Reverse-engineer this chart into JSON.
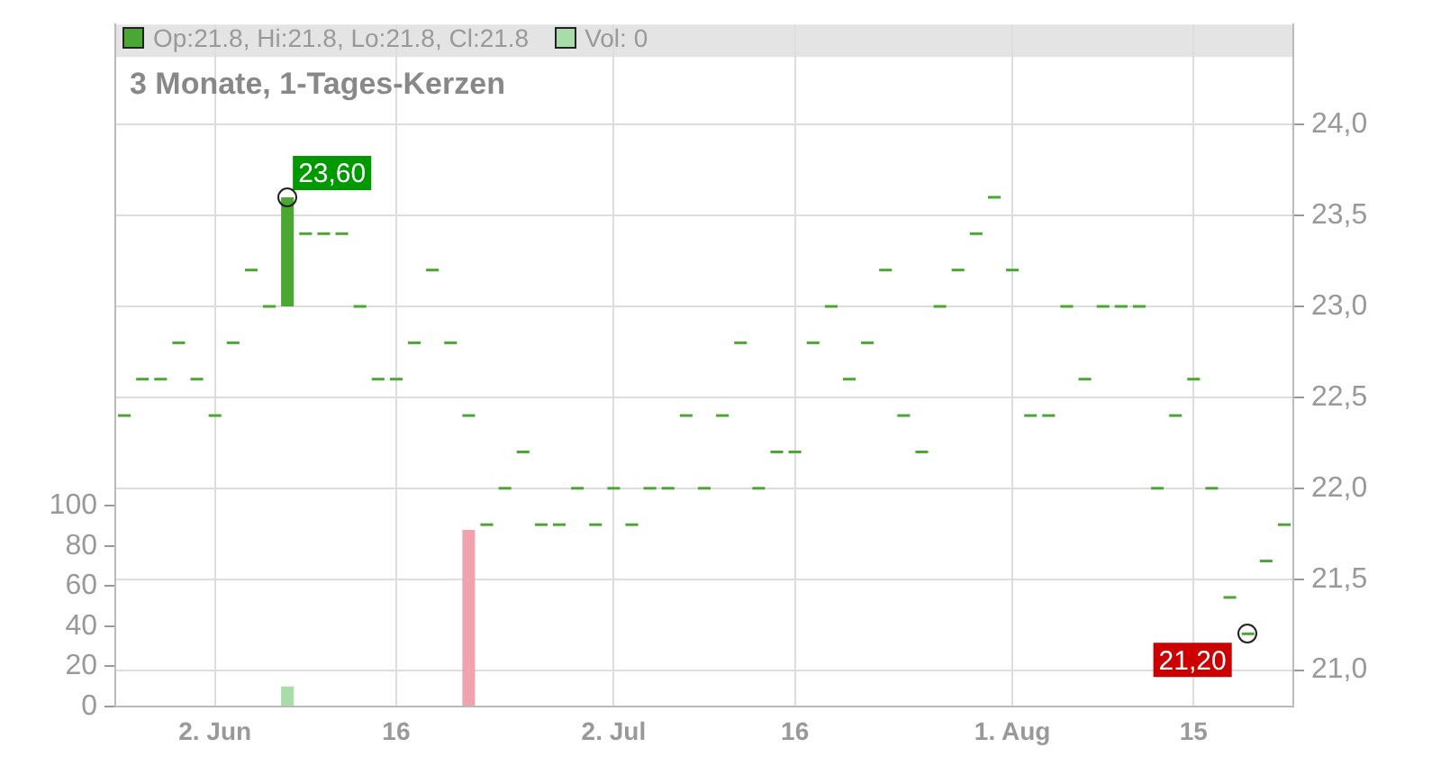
{
  "chart_data": {
    "type": "candlestick",
    "title": "3 Monate, 1-Tages-Kerzen",
    "categories": [
      null,
      null,
      null,
      null,
      null,
      "2. Jun",
      null,
      null,
      null,
      null,
      null,
      null,
      null,
      null,
      null,
      "16",
      null,
      null,
      null,
      null,
      null,
      null,
      null,
      null,
      null,
      null,
      null,
      "2. Jul",
      null,
      null,
      null,
      null,
      null,
      null,
      null,
      null,
      null,
      "16",
      null,
      null,
      null,
      null,
      null,
      null,
      null,
      null,
      null,
      null,
      null,
      "1. Aug",
      null,
      null,
      null,
      null,
      null,
      null,
      null,
      null,
      null,
      "15",
      null,
      null,
      null,
      null,
      null
    ],
    "series": [
      {
        "name": "Op:21.8, Hi:21.8, Lo:21.8, Cl:21.8",
        "color": "#4aa832",
        "ohlc": [
          [
            22.4,
            22.4,
            22.4,
            22.4
          ],
          [
            22.6,
            22.6,
            22.6,
            22.6
          ],
          [
            22.6,
            22.6,
            22.6,
            22.6
          ],
          [
            22.8,
            22.8,
            22.8,
            22.8
          ],
          [
            22.6,
            22.6,
            22.6,
            22.6
          ],
          [
            22.4,
            22.4,
            22.4,
            22.4
          ],
          [
            22.8,
            22.8,
            22.8,
            22.8
          ],
          [
            23.2,
            23.2,
            23.2,
            23.2
          ],
          [
            23.0,
            23.0,
            23.0,
            23.0
          ],
          [
            23.0,
            23.6,
            23.0,
            23.6
          ],
          [
            23.4,
            23.4,
            23.4,
            23.4
          ],
          [
            23.4,
            23.4,
            23.4,
            23.4
          ],
          [
            23.4,
            23.4,
            23.4,
            23.4
          ],
          [
            23.0,
            23.0,
            23.0,
            23.0
          ],
          [
            22.6,
            22.6,
            22.6,
            22.6
          ],
          [
            22.6,
            22.6,
            22.6,
            22.6
          ],
          [
            22.8,
            22.8,
            22.8,
            22.8
          ],
          [
            23.2,
            23.2,
            23.2,
            23.2
          ],
          [
            22.8,
            22.8,
            22.8,
            22.8
          ],
          [
            22.4,
            22.4,
            22.4,
            22.4
          ],
          [
            21.8,
            21.8,
            21.8,
            21.8
          ],
          [
            22.0,
            22.0,
            22.0,
            22.0
          ],
          [
            22.2,
            22.2,
            22.2,
            22.2
          ],
          [
            21.8,
            21.8,
            21.8,
            21.8
          ],
          [
            21.8,
            21.8,
            21.8,
            21.8
          ],
          [
            22.0,
            22.0,
            22.0,
            22.0
          ],
          [
            21.8,
            21.8,
            21.8,
            21.8
          ],
          [
            22.0,
            22.0,
            22.0,
            22.0
          ],
          [
            21.8,
            21.8,
            21.8,
            21.8
          ],
          [
            22.0,
            22.0,
            22.0,
            22.0
          ],
          [
            22.0,
            22.0,
            22.0,
            22.0
          ],
          [
            22.4,
            22.4,
            22.4,
            22.4
          ],
          [
            22.0,
            22.0,
            22.0,
            22.0
          ],
          [
            22.4,
            22.4,
            22.4,
            22.4
          ],
          [
            22.8,
            22.8,
            22.8,
            22.8
          ],
          [
            22.0,
            22.0,
            22.0,
            22.0
          ],
          [
            22.2,
            22.2,
            22.2,
            22.2
          ],
          [
            22.2,
            22.2,
            22.2,
            22.2
          ],
          [
            22.8,
            22.8,
            22.8,
            22.8
          ],
          [
            23.0,
            23.0,
            23.0,
            23.0
          ],
          [
            22.6,
            22.6,
            22.6,
            22.6
          ],
          [
            22.8,
            22.8,
            22.8,
            22.8
          ],
          [
            23.2,
            23.2,
            23.2,
            23.2
          ],
          [
            22.4,
            22.4,
            22.4,
            22.4
          ],
          [
            22.2,
            22.2,
            22.2,
            22.2
          ],
          [
            23.0,
            23.0,
            23.0,
            23.0
          ],
          [
            23.2,
            23.2,
            23.2,
            23.2
          ],
          [
            23.4,
            23.4,
            23.4,
            23.4
          ],
          [
            23.6,
            23.6,
            23.6,
            23.6
          ],
          [
            23.2,
            23.2,
            23.2,
            23.2
          ],
          [
            22.4,
            22.4,
            22.4,
            22.4
          ],
          [
            22.4,
            22.4,
            22.4,
            22.4
          ],
          [
            23.0,
            23.0,
            23.0,
            23.0
          ],
          [
            22.6,
            22.6,
            22.6,
            22.6
          ],
          [
            23.0,
            23.0,
            23.0,
            23.0
          ],
          [
            23.0,
            23.0,
            23.0,
            23.0
          ],
          [
            23.0,
            23.0,
            23.0,
            23.0
          ],
          [
            22.0,
            22.0,
            22.0,
            22.0
          ],
          [
            22.4,
            22.4,
            22.4,
            22.4
          ],
          [
            22.6,
            22.6,
            22.6,
            22.6
          ],
          [
            22.0,
            22.0,
            22.0,
            22.0
          ],
          [
            21.4,
            21.4,
            21.4,
            21.4
          ],
          [
            21.2,
            21.2,
            21.2,
            21.2
          ],
          [
            21.6,
            21.6,
            21.6,
            21.6
          ],
          [
            21.8,
            21.8,
            21.8,
            21.8
          ]
        ]
      },
      {
        "type": "bar",
        "name": "Vol: 0",
        "axis": "y2",
        "color": "#a8dca8",
        "values": [
          0,
          0,
          0,
          0,
          0,
          0,
          0,
          0,
          0,
          10,
          0,
          0,
          0,
          0,
          0,
          0,
          0,
          0,
          0,
          88,
          0,
          0,
          0,
          0,
          0,
          0,
          0,
          0,
          0,
          0,
          0,
          0,
          0,
          0,
          0,
          0,
          0,
          0,
          0,
          0,
          0,
          0,
          0,
          0,
          0,
          0,
          0,
          0,
          0,
          0,
          0,
          0,
          0,
          0,
          0,
          0,
          0,
          0,
          0,
          0,
          0,
          0,
          0,
          0,
          0
        ],
        "colors": [
          "#a8dca8",
          "#a8dca8",
          "#a8dca8",
          "#a8dca8",
          "#a8dca8",
          "#a8dca8",
          "#a8dca8",
          "#a8dca8",
          "#a8dca8",
          "#a8dca8",
          "#a8dca8",
          "#a8dca8",
          "#a8dca8",
          "#a8dca8",
          "#a8dca8",
          "#a8dca8",
          "#a8dca8",
          "#a8dca8",
          "#a8dca8",
          "#f0a3ad",
          "#a8dca8",
          "#a8dca8",
          "#a8dca8",
          "#a8dca8",
          "#a8dca8",
          "#a8dca8",
          "#a8dca8",
          "#a8dca8",
          "#a8dca8",
          "#a8dca8",
          "#a8dca8",
          "#a8dca8",
          "#a8dca8",
          "#a8dca8",
          "#a8dca8",
          "#a8dca8",
          "#a8dca8",
          "#a8dca8",
          "#a8dca8",
          "#a8dca8",
          "#a8dca8",
          "#a8dca8",
          "#a8dca8",
          "#a8dca8",
          "#a8dca8",
          "#a8dca8",
          "#a8dca8",
          "#a8dca8",
          "#a8dca8",
          "#a8dca8",
          "#a8dca8",
          "#a8dca8",
          "#a8dca8",
          "#a8dca8",
          "#a8dca8",
          "#a8dca8",
          "#a8dca8",
          "#a8dca8",
          "#a8dca8",
          "#a8dca8",
          "#a8dca8",
          "#a8dca8",
          "#a8dca8",
          "#a8dca8",
          "#a8dca8"
        ]
      }
    ],
    "ylim": [
      20.8,
      24.55
    ],
    "yticks": [
      {
        "value": 21.0,
        "label": "21,0"
      },
      {
        "value": 21.5,
        "label": "21,5"
      },
      {
        "value": 22.0,
        "label": "22,0"
      },
      {
        "value": 22.5,
        "label": "22,5"
      },
      {
        "value": 23.0,
        "label": "23,0"
      },
      {
        "value": 23.5,
        "label": "23,5"
      },
      {
        "value": 24.0,
        "label": "24,0"
      }
    ],
    "y2lim": [
      0,
      340
    ],
    "y2ticks": [
      0,
      20,
      40,
      60,
      80,
      100
    ],
    "annotations": [
      "23,60",
      "21,20"
    ],
    "grid": true,
    "legend": "top left"
  }
}
